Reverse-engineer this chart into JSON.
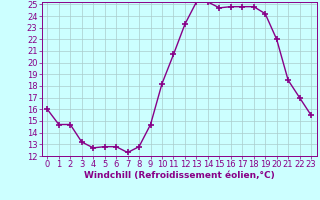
{
  "x": [
    0,
    1,
    2,
    3,
    4,
    5,
    6,
    7,
    8,
    9,
    10,
    11,
    12,
    13,
    14,
    15,
    16,
    17,
    18,
    19,
    20,
    21,
    22,
    23
  ],
  "y": [
    16,
    14.7,
    14.7,
    13.2,
    12.7,
    12.8,
    12.8,
    12.3,
    12.8,
    14.7,
    18.2,
    20.7,
    23.3,
    25.2,
    25.2,
    24.7,
    24.8,
    24.8,
    24.8,
    24.2,
    22.0,
    18.5,
    17.0,
    15.5
  ],
  "line_color": "#880088",
  "marker": "+",
  "markersize": 4,
  "markeredgewidth": 1.2,
  "linewidth": 1,
  "bg_color": "#ccffff",
  "grid_color": "#aacccc",
  "xlabel": "Windchill (Refroidissement éolien,°C)",
  "xlabel_fontsize": 6.5,
  "tick_fontsize": 6,
  "ylim": [
    12,
    25
  ],
  "xlim": [
    -0.5,
    23.5
  ],
  "yticks": [
    12,
    13,
    14,
    15,
    16,
    17,
    18,
    19,
    20,
    21,
    22,
    23,
    24,
    25
  ],
  "xticks": [
    0,
    1,
    2,
    3,
    4,
    5,
    6,
    7,
    8,
    9,
    10,
    11,
    12,
    13,
    14,
    15,
    16,
    17,
    18,
    19,
    20,
    21,
    22,
    23
  ]
}
